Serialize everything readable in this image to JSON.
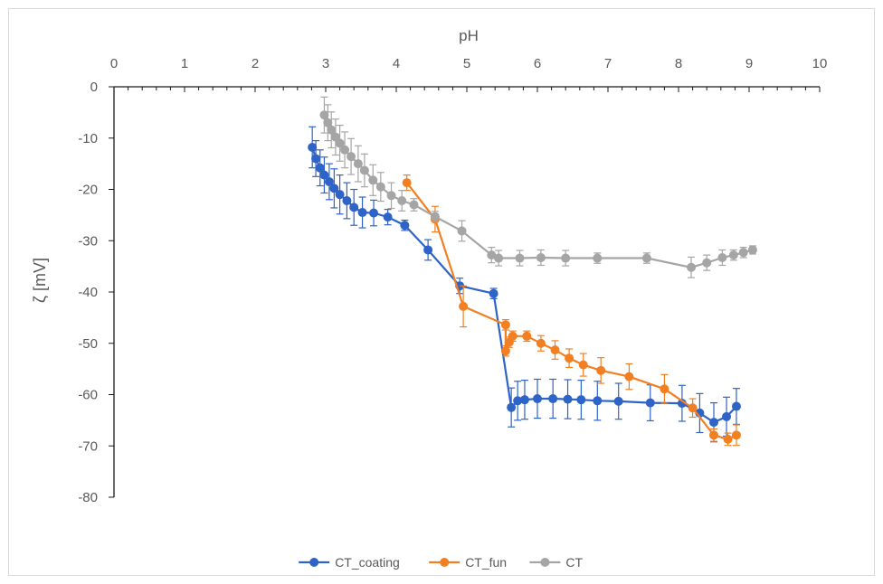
{
  "chart_data": {
    "type": "line",
    "title": "",
    "xlabel": "pH",
    "ylabel": "ζ [mV]",
    "xlim": [
      0,
      10
    ],
    "ylim": [
      -80,
      0
    ],
    "x_ticks": [
      "0",
      "1",
      "2",
      "3",
      "4",
      "5",
      "6",
      "7",
      "8",
      "9",
      "10"
    ],
    "y_ticks": [
      "0",
      "-10",
      "-20",
      "-30",
      "-40",
      "-50",
      "-60",
      "-70",
      "-80"
    ],
    "x_axis_position": "top",
    "grid": false,
    "legend": {
      "position": "bottom"
    },
    "series": [
      {
        "name": "CT_coating",
        "color": "#2e64c8",
        "points": [
          {
            "x": 2.81,
            "y": -11.8,
            "err": 4.0
          },
          {
            "x": 2.86,
            "y": -14.0,
            "err": 3.5
          },
          {
            "x": 2.92,
            "y": -15.8,
            "err": 3.5
          },
          {
            "x": 2.98,
            "y": -17.2,
            "err": 3.5
          },
          {
            "x": 3.05,
            "y": -18.5,
            "err": 3.5
          },
          {
            "x": 3.12,
            "y": -19.8,
            "err": 3.8
          },
          {
            "x": 3.2,
            "y": -21.0,
            "err": 3.8
          },
          {
            "x": 3.3,
            "y": -22.2,
            "err": 3.5
          },
          {
            "x": 3.4,
            "y": -23.5,
            "err": 3.5
          },
          {
            "x": 3.52,
            "y": -24.5,
            "err": 3.0
          },
          {
            "x": 3.68,
            "y": -24.6,
            "err": 2.5
          },
          {
            "x": 3.88,
            "y": -25.4,
            "err": 1.5
          },
          {
            "x": 4.12,
            "y": -27.0,
            "err": 1.0
          },
          {
            "x": 4.45,
            "y": -31.8,
            "err": 2.0
          },
          {
            "x": 4.9,
            "y": -38.8,
            "err": 1.5
          },
          {
            "x": 5.38,
            "y": -40.3,
            "err": 1.0
          },
          {
            "x": 5.63,
            "y": -62.5,
            "err": 3.8
          },
          {
            "x": 5.72,
            "y": -61.2,
            "err": 3.8
          },
          {
            "x": 5.82,
            "y": -61.0,
            "err": 3.8
          },
          {
            "x": 6.0,
            "y": -60.8,
            "err": 3.8
          },
          {
            "x": 6.22,
            "y": -60.8,
            "err": 3.8
          },
          {
            "x": 6.43,
            "y": -60.9,
            "err": 3.8
          },
          {
            "x": 6.62,
            "y": -61.0,
            "err": 3.8
          },
          {
            "x": 6.85,
            "y": -61.2,
            "err": 3.8
          },
          {
            "x": 7.15,
            "y": -61.3,
            "err": 3.5
          },
          {
            "x": 7.6,
            "y": -61.6,
            "err": 3.5
          },
          {
            "x": 8.05,
            "y": -61.7,
            "err": 3.5
          },
          {
            "x": 8.3,
            "y": -63.6,
            "err": 3.8
          },
          {
            "x": 8.5,
            "y": -65.4,
            "err": 3.8
          },
          {
            "x": 8.68,
            "y": -64.3,
            "err": 3.8
          },
          {
            "x": 8.82,
            "y": -62.3,
            "err": 3.5
          }
        ]
      },
      {
        "name": "CT_fun",
        "color": "#f28022",
        "points": [
          {
            "x": 4.15,
            "y": -18.7,
            "err": 1.5
          },
          {
            "x": 4.55,
            "y": -25.8,
            "err": 2.5
          },
          {
            "x": 4.95,
            "y": -42.8,
            "err": 4.0
          },
          {
            "x": 5.55,
            "y": -46.4,
            "err": 1.0
          },
          {
            "x": 5.55,
            "y": -51.5,
            "err": 1.0
          },
          {
            "x": 5.6,
            "y": -49.8,
            "err": 1.0
          },
          {
            "x": 5.65,
            "y": -48.6,
            "err": 1.0
          },
          {
            "x": 5.85,
            "y": -48.6,
            "err": 1.0
          },
          {
            "x": 6.05,
            "y": -50.0,
            "err": 1.5
          },
          {
            "x": 6.25,
            "y": -51.3,
            "err": 1.8
          },
          {
            "x": 6.45,
            "y": -52.9,
            "err": 1.8
          },
          {
            "x": 6.65,
            "y": -54.2,
            "err": 2.2
          },
          {
            "x": 6.9,
            "y": -55.3,
            "err": 2.5
          },
          {
            "x": 7.3,
            "y": -56.5,
            "err": 2.5
          },
          {
            "x": 7.8,
            "y": -58.9,
            "err": 2.8
          },
          {
            "x": 8.2,
            "y": -62.6,
            "err": 1.8
          },
          {
            "x": 8.5,
            "y": -67.9,
            "err": 1.2
          },
          {
            "x": 8.7,
            "y": -68.7,
            "err": 1.2
          },
          {
            "x": 8.82,
            "y": -67.9,
            "err": 2.0
          }
        ]
      },
      {
        "name": "CT",
        "color": "#a5a5a5",
        "points": [
          {
            "x": 2.98,
            "y": -5.5,
            "err": 3.5
          },
          {
            "x": 3.03,
            "y": -7.0,
            "err": 3.5
          },
          {
            "x": 3.08,
            "y": -8.4,
            "err": 3.5
          },
          {
            "x": 3.14,
            "y": -9.8,
            "err": 3.5
          },
          {
            "x": 3.2,
            "y": -11.0,
            "err": 3.5
          },
          {
            "x": 3.27,
            "y": -12.3,
            "err": 3.5
          },
          {
            "x": 3.36,
            "y": -13.6,
            "err": 3.5
          },
          {
            "x": 3.46,
            "y": -15.0,
            "err": 3.5
          },
          {
            "x": 3.55,
            "y": -16.3,
            "err": 3.2
          },
          {
            "x": 3.67,
            "y": -18.2,
            "err": 3.0
          },
          {
            "x": 3.78,
            "y": -19.5,
            "err": 2.8
          },
          {
            "x": 3.93,
            "y": -21.2,
            "err": 2.5
          },
          {
            "x": 4.08,
            "y": -22.2,
            "err": 2.0
          },
          {
            "x": 4.25,
            "y": -23.0,
            "err": 1.2
          },
          {
            "x": 4.55,
            "y": -25.3,
            "err": 1.0
          },
          {
            "x": 4.93,
            "y": -28.1,
            "err": 2.0
          },
          {
            "x": 5.35,
            "y": -32.8,
            "err": 1.5
          },
          {
            "x": 5.45,
            "y": -33.4,
            "err": 1.5
          },
          {
            "x": 5.75,
            "y": -33.4,
            "err": 1.5
          },
          {
            "x": 6.05,
            "y": -33.3,
            "err": 1.5
          },
          {
            "x": 6.4,
            "y": -33.4,
            "err": 1.5
          },
          {
            "x": 6.85,
            "y": -33.4,
            "err": 1.0
          },
          {
            "x": 7.55,
            "y": -33.4,
            "err": 1.0
          },
          {
            "x": 8.18,
            "y": -35.2,
            "err": 2.0
          },
          {
            "x": 8.4,
            "y": -34.3,
            "err": 1.5
          },
          {
            "x": 8.62,
            "y": -33.3,
            "err": 1.5
          },
          {
            "x": 8.78,
            "y": -32.8,
            "err": 1.0
          },
          {
            "x": 8.92,
            "y": -32.3,
            "err": 1.0
          },
          {
            "x": 9.05,
            "y": -31.8,
            "err": 0.8
          }
        ]
      }
    ]
  }
}
